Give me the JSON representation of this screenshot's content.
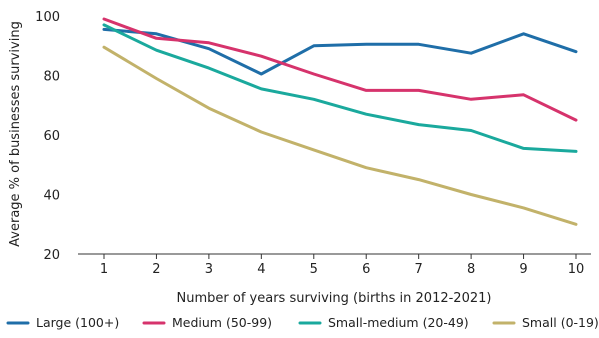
{
  "chart_data": {
    "type": "line",
    "title": "",
    "xlabel": "Number of years surviving (births in 2012-2021)",
    "ylabel": "Average % of businesses surviving",
    "x": [
      1,
      2,
      3,
      4,
      5,
      6,
      7,
      8,
      9,
      10
    ],
    "ylim": [
      20,
      100
    ],
    "yticks": [
      20,
      40,
      60,
      80,
      100
    ],
    "grid": false,
    "legend_position": "bottom",
    "series": [
      {
        "name": "Large (100+)",
        "color": "#1f6ea8",
        "values": [
          95.5,
          94,
          89,
          80.5,
          90,
          90.5,
          90.5,
          87.5,
          94,
          88
        ]
      },
      {
        "name": "Medium (50-99)",
        "color": "#d6336c",
        "values": [
          99,
          92.5,
          91,
          86.5,
          80.5,
          75,
          75,
          72,
          73.5,
          65
        ]
      },
      {
        "name": "Small-medium (20-49)",
        "color": "#1aa99d",
        "values": [
          97,
          88.5,
          82.5,
          75.5,
          72,
          67,
          63.5,
          61.5,
          55.5,
          54.5
        ]
      },
      {
        "name": "Small (0-19)",
        "color": "#c2b26a",
        "values": [
          89.5,
          79,
          69,
          61,
          55,
          49,
          45,
          40,
          35.5,
          30
        ]
      }
    ]
  }
}
